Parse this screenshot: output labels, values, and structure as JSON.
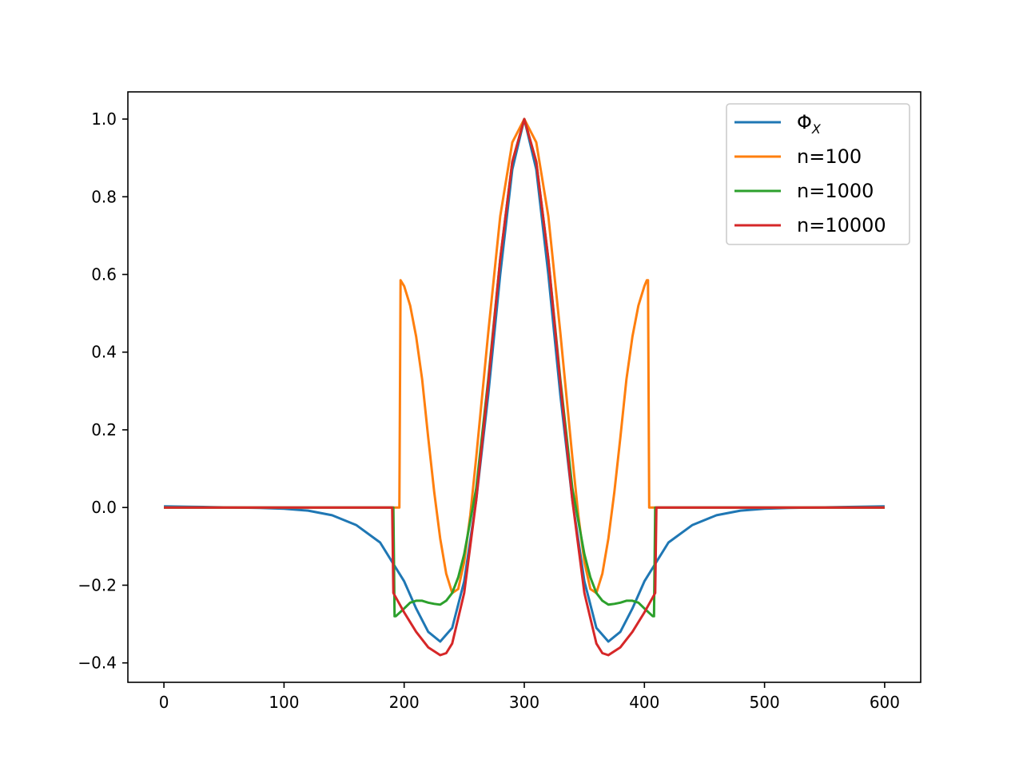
{
  "chart_data": {
    "type": "line",
    "title": "",
    "xlabel": "",
    "ylabel": "",
    "xlim": [
      -30,
      630
    ],
    "ylim": [
      -0.45,
      1.07
    ],
    "xticks": [
      0,
      100,
      200,
      300,
      400,
      500,
      600
    ],
    "xtick_labels": [
      "0",
      "100",
      "200",
      "300",
      "400",
      "500",
      "600"
    ],
    "yticks": [
      -0.4,
      -0.2,
      0.0,
      0.2,
      0.4,
      0.6,
      0.8,
      1.0
    ],
    "ytick_labels": [
      "−0.4",
      "−0.2",
      "0.0",
      "0.2",
      "0.4",
      "0.6",
      "0.8",
      "1.0"
    ],
    "grid": false,
    "legend_position": "top-right",
    "series": [
      {
        "name": "Φ",
        "name_subscript": "X",
        "color": "#1f77b4",
        "x": [
          0,
          20,
          40,
          60,
          80,
          100,
          120,
          140,
          160,
          180,
          200,
          210,
          220,
          230,
          240,
          250,
          260,
          270,
          280,
          290,
          300,
          310,
          320,
          330,
          340,
          350,
          360,
          370,
          380,
          390,
          400,
          420,
          440,
          460,
          480,
          500,
          520,
          540,
          560,
          580,
          600
        ],
        "y": [
          0.003,
          0.002,
          0.001,
          0.0,
          -0.001,
          -0.003,
          -0.008,
          -0.02,
          -0.045,
          -0.09,
          -0.19,
          -0.26,
          -0.32,
          -0.345,
          -0.31,
          -0.19,
          0.02,
          0.29,
          0.6,
          0.87,
          1.0,
          0.87,
          0.6,
          0.29,
          0.02,
          -0.19,
          -0.31,
          -0.345,
          -0.32,
          -0.26,
          -0.19,
          -0.09,
          -0.045,
          -0.02,
          -0.008,
          -0.003,
          -0.001,
          0.0,
          0.001,
          0.002,
          0.003
        ]
      },
      {
        "name": "n=100",
        "color": "#ff7f0e",
        "x": [
          0,
          195,
          196,
          197,
          200,
          205,
          210,
          215,
          220,
          225,
          230,
          235,
          240,
          245,
          250,
          255,
          260,
          270,
          280,
          290,
          300,
          310,
          320,
          330,
          340,
          345,
          350,
          355,
          360,
          365,
          370,
          375,
          380,
          385,
          390,
          395,
          400,
          402,
          403,
          404,
          405,
          600
        ],
        "y": [
          0.0,
          0.0,
          0.0,
          0.585,
          0.57,
          0.52,
          0.44,
          0.33,
          0.18,
          0.04,
          -0.08,
          -0.17,
          -0.22,
          -0.21,
          -0.14,
          -0.02,
          0.13,
          0.45,
          0.75,
          0.94,
          1.0,
          0.94,
          0.75,
          0.45,
          0.13,
          -0.02,
          -0.14,
          -0.21,
          -0.22,
          -0.17,
          -0.08,
          0.04,
          0.18,
          0.33,
          0.44,
          0.52,
          0.57,
          0.585,
          0.585,
          0.0,
          0.0,
          0.0
        ]
      },
      {
        "name": "n=1000",
        "color": "#2ca02c",
        "x": [
          0,
          191,
          192,
          193,
          200,
          205,
          210,
          215,
          220,
          225,
          230,
          235,
          240,
          245,
          250,
          260,
          270,
          280,
          290,
          300,
          310,
          320,
          330,
          340,
          350,
          355,
          360,
          365,
          370,
          375,
          380,
          385,
          390,
          395,
          400,
          407,
          408,
          409,
          600
        ],
        "y": [
          0.0,
          0.0,
          -0.28,
          -0.28,
          -0.26,
          -0.245,
          -0.24,
          -0.24,
          -0.245,
          -0.248,
          -0.25,
          -0.24,
          -0.22,
          -0.18,
          -0.12,
          0.05,
          0.33,
          0.64,
          0.89,
          1.0,
          0.89,
          0.64,
          0.33,
          0.05,
          -0.12,
          -0.18,
          -0.22,
          -0.24,
          -0.25,
          -0.248,
          -0.245,
          -0.24,
          -0.24,
          -0.245,
          -0.26,
          -0.28,
          -0.28,
          0.0,
          0.0
        ]
      },
      {
        "name": "n=10000",
        "color": "#d62728",
        "x": [
          0,
          190,
          191,
          200,
          210,
          220,
          230,
          235,
          240,
          250,
          260,
          270,
          280,
          290,
          300,
          310,
          320,
          330,
          340,
          350,
          360,
          365,
          370,
          380,
          390,
          400,
          409,
          410,
          600
        ],
        "y": [
          0.0,
          0.0,
          -0.22,
          -0.27,
          -0.32,
          -0.36,
          -0.38,
          -0.375,
          -0.35,
          -0.22,
          0.02,
          0.32,
          0.64,
          0.89,
          1.0,
          0.89,
          0.64,
          0.32,
          0.02,
          -0.22,
          -0.35,
          -0.375,
          -0.38,
          -0.36,
          -0.32,
          -0.27,
          -0.22,
          0.0,
          0.0
        ]
      }
    ]
  }
}
